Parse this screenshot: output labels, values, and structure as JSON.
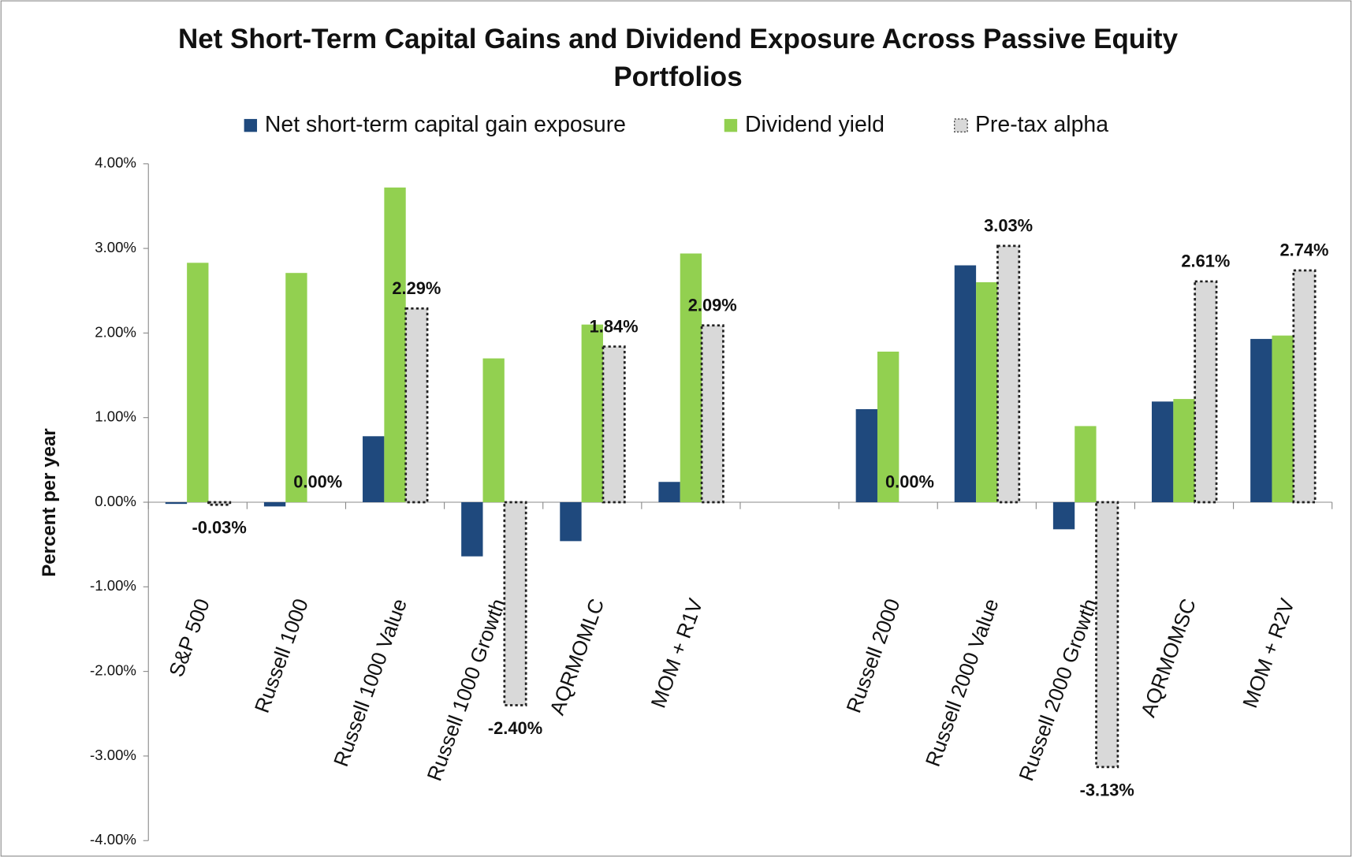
{
  "chart_data": {
    "type": "bar",
    "title": "Net Short-Term Capital Gains and Dividend Exposure Across Passive Equity Portfolios",
    "y_label": "Percent per year",
    "categories": [
      "S&P 500",
      "Russell 1000",
      "Russell 1000 Value",
      "Russell 1000 Growth",
      "AQRMOMLC",
      "MOM + R1V",
      null,
      "Russell 2000",
      "Russell 2000 Value",
      "Russell 2000 Growth",
      "AQRMOMSC",
      "MOM + R2V"
    ],
    "series": [
      {
        "name": "Net short-term capital gain exposure",
        "color": "#1f497d",
        "values": [
          -0.02,
          -0.05,
          0.78,
          -0.64,
          -0.46,
          0.24,
          null,
          1.1,
          2.8,
          -0.32,
          1.19,
          1.93
        ]
      },
      {
        "name": "Dividend yield",
        "color": "#92d050",
        "values": [
          2.83,
          2.71,
          3.72,
          1.7,
          2.1,
          2.94,
          null,
          1.78,
          2.6,
          0.9,
          1.22,
          1.97
        ]
      },
      {
        "name": "Pre-tax alpha",
        "color": "#d9d9d9",
        "values": [
          -0.03,
          0.0,
          2.29,
          -2.4,
          1.84,
          2.09,
          null,
          0.0,
          3.03,
          -3.13,
          2.61,
          2.74
        ],
        "value_labels": [
          "-0.03%",
          "0.00%",
          "2.29%",
          "-2.40%",
          "1.84%",
          "2.09%",
          null,
          "0.00%",
          "3.03%",
          "-3.13%",
          "2.61%",
          "2.74%"
        ]
      }
    ],
    "ylim": [
      -4,
      4
    ],
    "yticks": [
      {
        "value": -4,
        "label": "-4.00%"
      },
      {
        "value": -3,
        "label": "-3.00%"
      },
      {
        "value": -2,
        "label": "-2.00%"
      },
      {
        "value": -1,
        "label": "-1.00%"
      },
      {
        "value": 0,
        "label": "0.00%"
      },
      {
        "value": 1,
        "label": "1.00%"
      },
      {
        "value": 2,
        "label": "2.00%"
      },
      {
        "value": 3,
        "label": "3.00%"
      },
      {
        "value": 4,
        "label": "4.00%"
      }
    ],
    "grid": false
  }
}
